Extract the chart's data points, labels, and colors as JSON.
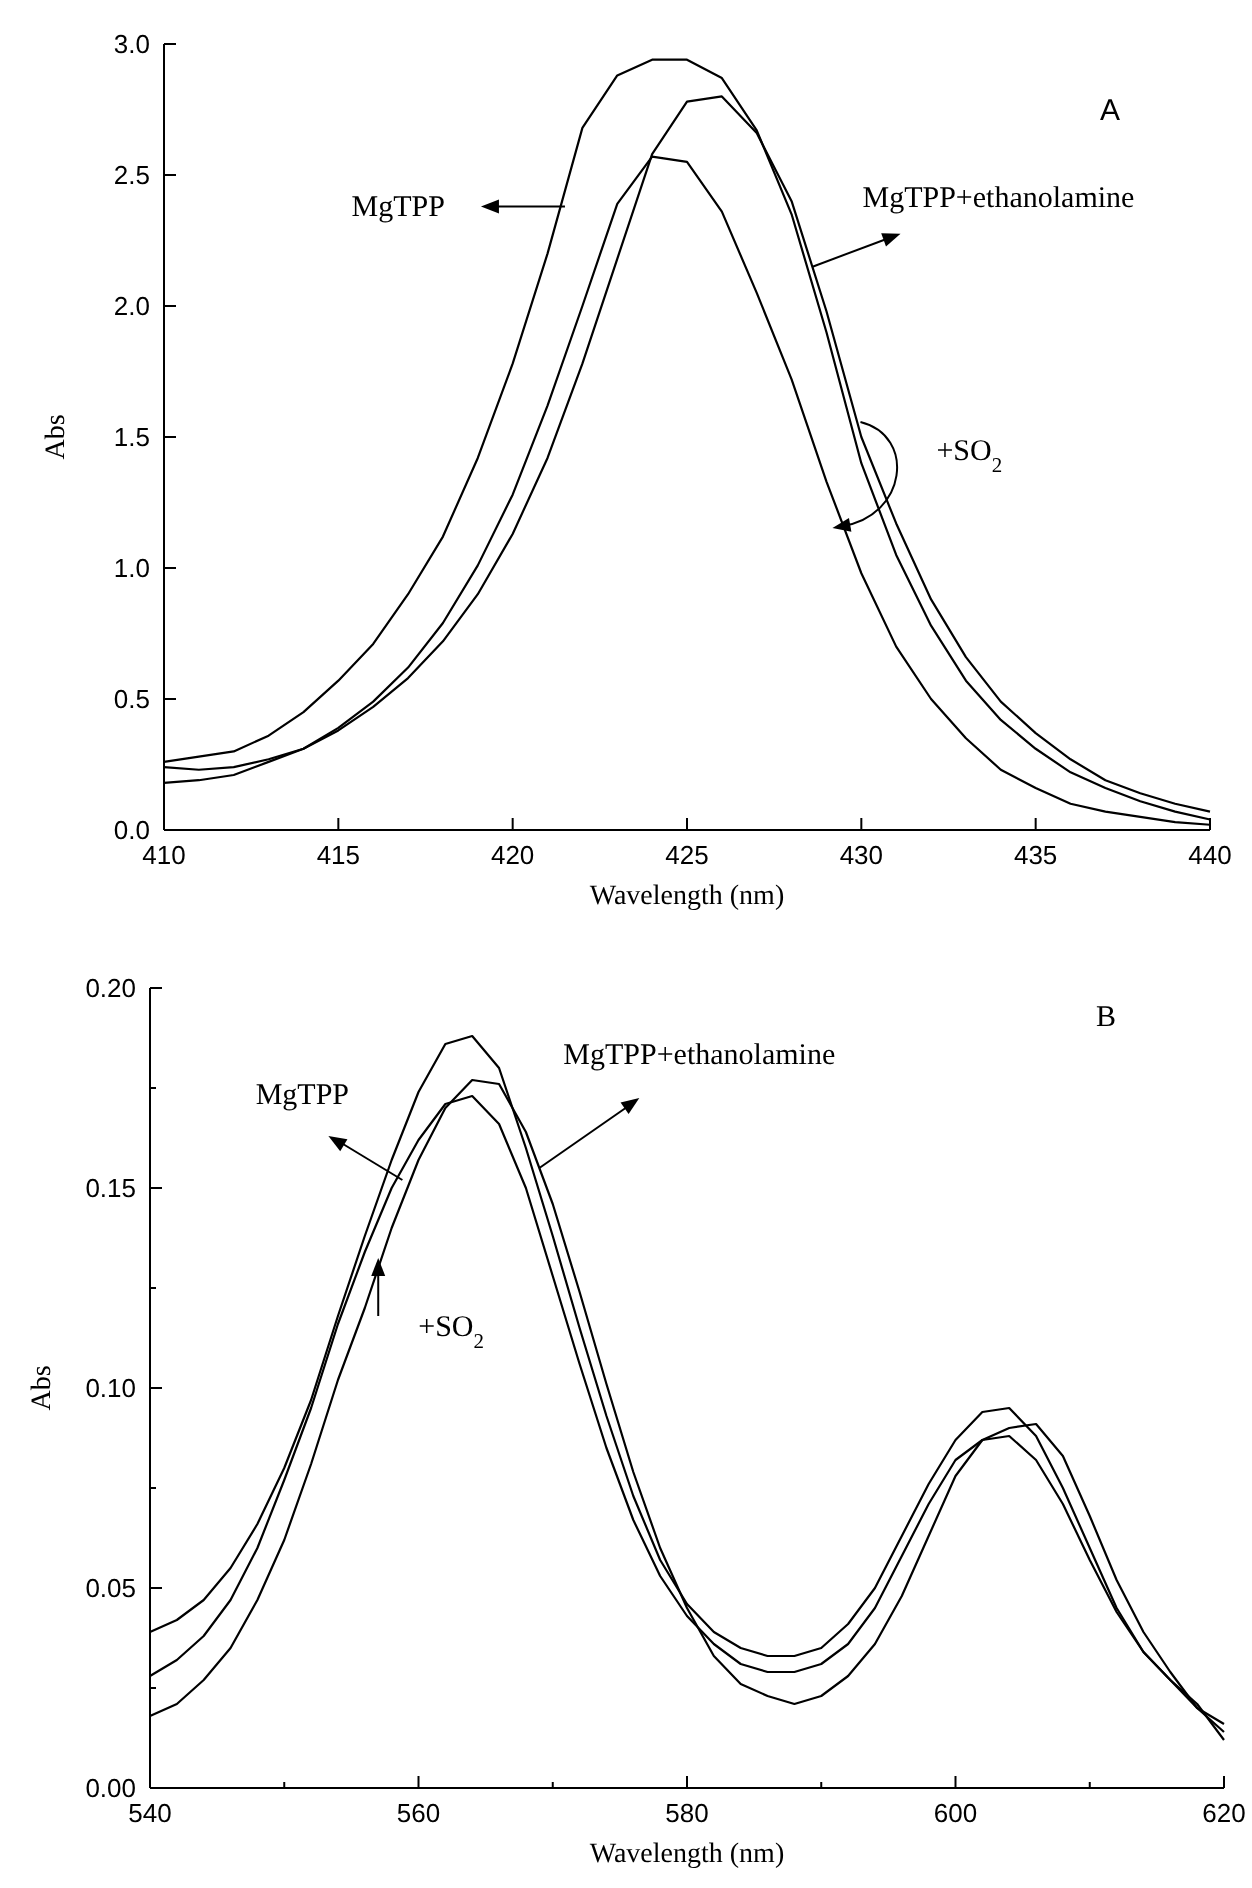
{
  "chart_data": [
    {
      "type": "line",
      "title": "A",
      "xlabel": "Wavelength (nm)",
      "ylabel": "Abs",
      "xlim": [
        410,
        440
      ],
      "ylim": [
        0,
        3.0
      ],
      "xticks": [
        410,
        415,
        420,
        425,
        430,
        435,
        440
      ],
      "yticks": [
        {
          "value": 0,
          "label": "0.0"
        },
        0.5,
        {
          "value": 1,
          "label": "1.0"
        },
        1.5,
        {
          "value": 2,
          "label": "2.0"
        },
        2.5,
        {
          "value": 3,
          "label": "3.0"
        }
      ],
      "grid": false,
      "marker": "none",
      "line_style": "solid",
      "x": [
        410,
        411,
        412,
        413,
        414,
        415,
        416,
        417,
        418,
        419,
        420,
        421,
        422,
        423,
        424,
        425,
        426,
        427,
        428,
        429,
        430,
        431,
        432,
        433,
        434,
        435,
        436,
        437,
        438,
        439,
        440
      ],
      "series": [
        {
          "color": "#000000",
          "values": [
            0.26,
            0.28,
            0.3,
            0.36,
            0.45,
            0.57,
            0.71,
            0.9,
            1.12,
            1.42,
            1.78,
            2.2,
            2.68,
            2.88,
            2.94,
            2.94,
            2.87,
            2.67,
            2.35,
            1.9,
            1.4,
            1.05,
            0.78,
            0.57,
            0.42,
            0.31,
            0.22,
            0.16,
            0.11,
            0.07,
            0.04
          ]
        },
        {
          "color": "#000000",
          "values": [
            0.18,
            0.19,
            0.21,
            0.26,
            0.31,
            0.38,
            0.47,
            0.58,
            0.72,
            0.9,
            1.13,
            1.42,
            1.78,
            2.18,
            2.58,
            2.78,
            2.8,
            2.66,
            2.4,
            1.98,
            1.5,
            1.17,
            0.88,
            0.66,
            0.49,
            0.37,
            0.27,
            0.19,
            0.14,
            0.1,
            0.07
          ]
        },
        {
          "color": "#000000",
          "values": [
            0.24,
            0.23,
            0.24,
            0.27,
            0.31,
            0.39,
            0.49,
            0.62,
            0.79,
            1.01,
            1.28,
            1.62,
            2.0,
            2.39,
            2.57,
            2.55,
            2.36,
            2.05,
            1.72,
            1.33,
            0.98,
            0.7,
            0.5,
            0.35,
            0.23,
            0.16,
            0.1,
            0.07,
            0.05,
            0.03,
            0.02
          ]
        }
      ],
      "annotations": [
        "MgTPP",
        {
          "text": "MgTPP+ethanolamine",
          "x": 428.6,
          "y": 2.15
        },
        "+SO$_{2}$"
      ]
    },
    {
      "type": "line",
      "title": "B",
      "xlabel": "Wavelength (nm)",
      "ylabel": "Abs",
      "xlim": [
        540,
        620
      ],
      "ylim": [
        0,
        0.2
      ],
      "xticks": [
        540,
        {
          "value": 550,
          "label": null
        },
        560,
        {
          "value": 570,
          "label": null
        },
        580,
        {
          "value": 590,
          "label": null
        },
        600,
        {
          "value": 610,
          "label": null
        },
        620
      ],
      "yticks": [
        {
          "value": 0,
          "label": "0.00"
        },
        {
          "value": 0.025,
          "label": null
        },
        0.05,
        {
          "value": 0.075,
          "label": null
        },
        {
          "value": 0.1,
          "label": "0.10"
        },
        {
          "value": 0.125,
          "label": null
        },
        0.15,
        {
          "value": 0.175,
          "label": null
        },
        {
          "value": 0.2,
          "label": "0.20"
        }
      ],
      "grid": false,
      "marker": "none",
      "line_style": "solid",
      "x": [
        540,
        542,
        544,
        546,
        548,
        550,
        552,
        554,
        556,
        558,
        560,
        562,
        564,
        566,
        568,
        570,
        572,
        574,
        576,
        578,
        580,
        582,
        584,
        586,
        588,
        590,
        592,
        594,
        596,
        598,
        600,
        602,
        604,
        606,
        608,
        610,
        612,
        614,
        616,
        618,
        620
      ],
      "series": [
        {
          "color": "#000000",
          "values": [
            0.039,
            0.042,
            0.047,
            0.055,
            0.066,
            0.08,
            0.097,
            0.118,
            0.138,
            0.157,
            0.174,
            0.186,
            0.188,
            0.18,
            0.16,
            0.138,
            0.115,
            0.093,
            0.073,
            0.057,
            0.046,
            0.039,
            0.035,
            0.033,
            0.033,
            0.035,
            0.041,
            0.05,
            0.063,
            0.076,
            0.087,
            0.094,
            0.095,
            0.088,
            0.075,
            0.06,
            0.045,
            0.034,
            0.027,
            0.02,
            0.014
          ]
        },
        {
          "color": "#000000",
          "values": [
            0.018,
            0.021,
            0.027,
            0.035,
            0.047,
            0.062,
            0.081,
            0.102,
            0.12,
            0.14,
            0.157,
            0.17,
            0.177,
            0.176,
            0.164,
            0.146,
            0.124,
            0.101,
            0.079,
            0.06,
            0.045,
            0.033,
            0.026,
            0.023,
            0.021,
            0.023,
            0.028,
            0.036,
            0.048,
            0.063,
            0.078,
            0.087,
            0.09,
            0.091,
            0.083,
            0.068,
            0.052,
            0.039,
            0.029,
            0.02,
            0.016
          ]
        },
        {
          "color": "#000000",
          "values": [
            0.028,
            0.032,
            0.038,
            0.047,
            0.06,
            0.077,
            0.095,
            0.116,
            0.134,
            0.15,
            0.162,
            0.171,
            0.173,
            0.166,
            0.15,
            0.128,
            0.106,
            0.085,
            0.067,
            0.053,
            0.043,
            0.036,
            0.031,
            0.029,
            0.029,
            0.031,
            0.036,
            0.045,
            0.058,
            0.071,
            0.082,
            0.087,
            0.088,
            0.082,
            0.071,
            0.057,
            0.044,
            0.034,
            0.027,
            0.021,
            0.012
          ]
        }
      ],
      "annotations": [
        "MgTPP",
        {
          "text": "MgTPP+ethanolamine",
          "x": 569,
          "y": 0.155
        },
        "+SO$_{2}$"
      ]
    }
  ]
}
